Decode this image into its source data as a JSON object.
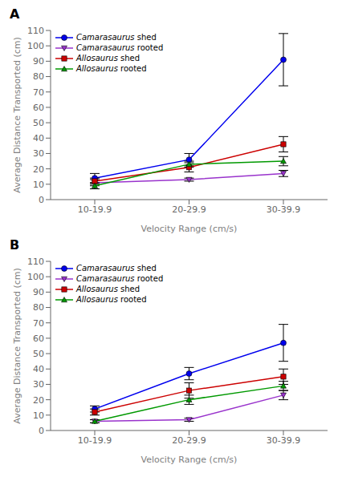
{
  "chart_data": [
    {
      "type": "line",
      "title": "A",
      "xlabel": "Velocity Range (cm/s)",
      "ylabel": "Average Distance Transported (cm)",
      "categories": [
        "10-19.9",
        "20-29.9",
        "30-39.9"
      ],
      "ylim": [
        0,
        110
      ],
      "yticks": [
        0,
        10,
        20,
        30,
        40,
        50,
        60,
        70,
        80,
        90,
        100,
        110
      ],
      "grid": false,
      "legend": "upper left",
      "series": [
        {
          "name": "Camarasaurus shed",
          "color": "#0000EE",
          "marker": "circle",
          "values": [
            14,
            26,
            91
          ],
          "error_minus": [
            3,
            4,
            17
          ],
          "error_plus": [
            3,
            4,
            17
          ]
        },
        {
          "name": "Camarasaurus rooted",
          "color": "#9933CC",
          "marker": "triangle_down",
          "values": [
            11,
            13,
            17
          ],
          "error_minus": [
            2,
            1,
            2
          ],
          "error_plus": [
            2,
            1,
            2
          ]
        },
        {
          "name": "Allosaurus shed",
          "color": "#CC0000",
          "marker": "square",
          "values": [
            12,
            21,
            36
          ],
          "error_minus": [
            2,
            3,
            5
          ],
          "error_plus": [
            2,
            3,
            5
          ]
        },
        {
          "name": "Allosaurus rooted",
          "color": "#009900",
          "marker": "triangle_up",
          "values": [
            9,
            23,
            25
          ],
          "error_minus": [
            2,
            2,
            3
          ],
          "error_plus": [
            2,
            2,
            3
          ]
        }
      ]
    },
    {
      "type": "line",
      "title": "B",
      "xlabel": "Velocity Range (cm/s)",
      "ylabel": "Average Distance Transported (cm)",
      "categories": [
        "10-19.9",
        "20-29.9",
        "30-39.9"
      ],
      "ylim": [
        0,
        110
      ],
      "yticks": [
        0,
        10,
        20,
        30,
        40,
        50,
        60,
        70,
        80,
        90,
        100,
        110
      ],
      "grid": false,
      "legend": "upper left",
      "series": [
        {
          "name": "Camarasaurus shed",
          "color": "#0000EE",
          "marker": "circle",
          "values": [
            14,
            37,
            57
          ],
          "error_minus": [
            2,
            4,
            12
          ],
          "error_plus": [
            2,
            4,
            12
          ]
        },
        {
          "name": "Camarasaurus rooted",
          "color": "#9933CC",
          "marker": "triangle_down",
          "values": [
            6,
            7,
            23
          ],
          "error_minus": [
            1,
            1,
            3
          ],
          "error_plus": [
            1,
            1,
            3
          ]
        },
        {
          "name": "Allosaurus shed",
          "color": "#CC0000",
          "marker": "square",
          "values": [
            12,
            26,
            35
          ],
          "error_minus": [
            2,
            5,
            5
          ],
          "error_plus": [
            2,
            5,
            5
          ]
        },
        {
          "name": "Allosaurus rooted",
          "color": "#009900",
          "marker": "triangle_up",
          "values": [
            6,
            20,
            29
          ],
          "error_minus": [
            1,
            3,
            3
          ],
          "error_plus": [
            1,
            3,
            3
          ]
        }
      ]
    }
  ]
}
